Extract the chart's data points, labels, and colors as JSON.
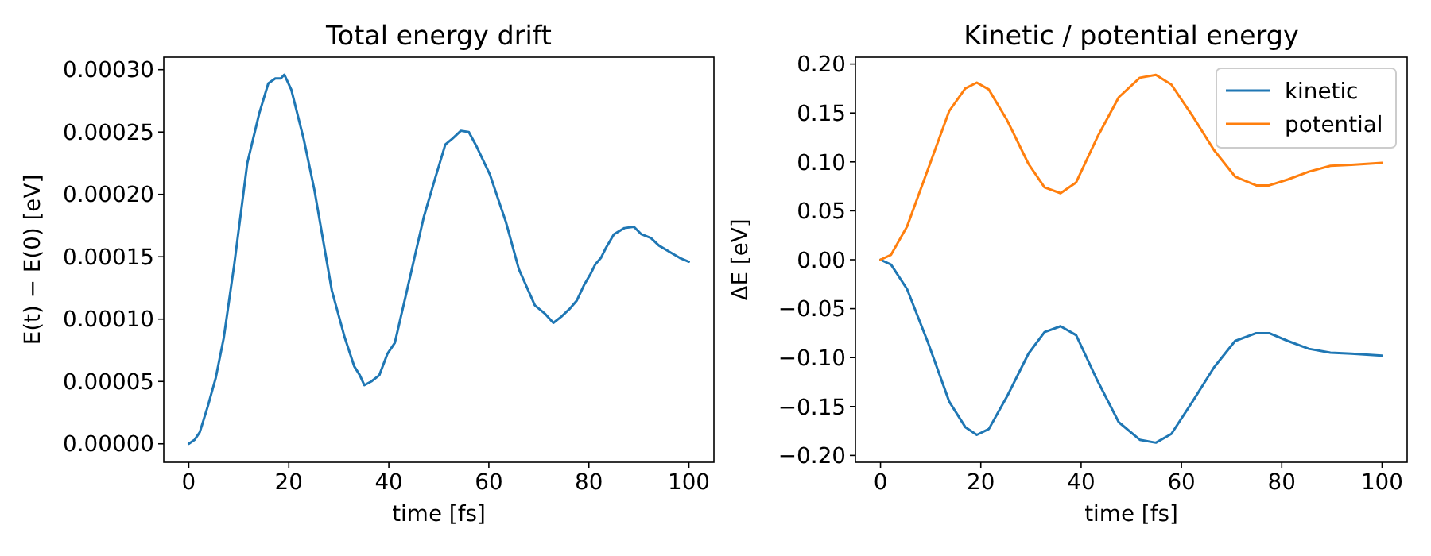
{
  "chart_data": [
    {
      "type": "line",
      "title": "Total energy drift",
      "xlabel": "time [fs]",
      "ylabel": "E(t) − E(0) [eV]",
      "xlim": [
        -5,
        105
      ],
      "xticks": [
        0,
        20,
        40,
        60,
        80,
        100
      ],
      "ylim": [
        -1.48e-05,
        0.00031
      ],
      "yticks": [
        {
          "value": 0,
          "label": "0.00000"
        },
        {
          "value": 5e-05,
          "label": "0.00005"
        },
        {
          "value": 0.0001,
          "label": "0.00010"
        },
        {
          "value": 0.00015,
          "label": "0.00015"
        },
        {
          "value": 0.0002,
          "label": "0.00020"
        },
        {
          "value": 0.00025,
          "label": "0.00025"
        },
        {
          "value": 0.0003,
          "label": "0.00030"
        }
      ],
      "line_style": "solid",
      "marker": "none",
      "series": [
        {
          "color": "#1f77b4",
          "x": [
            0,
            1.2,
            2.2,
            3.8,
            5.4,
            7,
            9.1,
            11.7,
            14.1,
            15.9,
            17.3,
            18.4,
            19.1,
            20.5,
            23,
            25.1,
            28.6,
            31.2,
            33.1,
            34.2,
            35.1,
            36.5,
            38.1,
            39.7,
            41.2,
            43.4,
            47,
            49.2,
            51.3,
            52.8,
            54.4,
            56,
            57.6,
            60.2,
            62.3,
            63.4,
            66,
            69.2,
            71.3,
            72.9,
            74.5,
            76.1,
            77.6,
            79,
            80.3,
            81.3,
            82.4,
            83.4,
            85,
            87.1,
            89,
            90.5,
            92.4,
            94,
            96.1,
            98.2,
            100
          ],
          "values": [
            0,
            3.4e-06,
            9.3e-06,
            3e-05,
            5.3e-05,
            8.5e-05,
            0.000144,
            0.000225,
            0.000265,
            0.000289,
            0.000293,
            0.000293,
            0.000296,
            0.000284,
            0.000244,
            0.000204,
            0.000123,
            8.5e-05,
            6.2e-05,
            5.5e-05,
            4.7e-05,
            5e-05,
            5.5e-05,
            7.2e-05,
            8.1e-05,
            0.000119,
            0.000182,
            0.000212,
            0.00024,
            0.000245,
            0.000251,
            0.00025,
            0.000238,
            0.000216,
            0.000191,
            0.000178,
            0.00014,
            0.000111,
            0.000104,
            9.7e-05,
            0.000102,
            0.000108,
            0.000115,
            0.000127,
            0.000136,
            0.000144,
            0.000149,
            0.000157,
            0.000168,
            0.000173,
            0.000174,
            0.000168,
            0.000165,
            0.000159,
            0.000154,
            0.000149,
            0.000146
          ]
        }
      ]
    },
    {
      "type": "line",
      "title": "Kinetic / potential energy",
      "xlabel": "time [fs]",
      "ylabel": "ΔE [eV]",
      "xlim": [
        -5,
        105
      ],
      "xticks": [
        0,
        20,
        40,
        60,
        80,
        100
      ],
      "ylim": [
        -0.207,
        0.207
      ],
      "yticks": [
        {
          "value": -0.2,
          "label": "−0.20"
        },
        {
          "value": -0.15,
          "label": "−0.15"
        },
        {
          "value": -0.1,
          "label": "−0.10"
        },
        {
          "value": -0.05,
          "label": "−0.05"
        },
        {
          "value": 0,
          "label": "0.00"
        },
        {
          "value": 0.05,
          "label": "0.05"
        },
        {
          "value": 0.1,
          "label": "0.10"
        },
        {
          "value": 0.15,
          "label": "0.15"
        },
        {
          "value": 0.2,
          "label": "0.20"
        }
      ],
      "legend": "top right",
      "line_style": "solid",
      "marker": "none",
      "x": [
        0,
        2.1,
        5.3,
        9.5,
        13.7,
        16.9,
        19.2,
        21.6,
        25.3,
        29.5,
        32.7,
        35.9,
        39,
        43.2,
        47.5,
        51.7,
        54.9,
        58,
        62.2,
        66.5,
        70.7,
        74.9,
        77.5,
        81.2,
        85.4,
        89.7,
        93.9,
        100
      ],
      "series": [
        {
          "name": "kinetic",
          "color": "#1f77b4",
          "values": [
            0,
            -0.005,
            -0.03,
            -0.085,
            -0.145,
            -0.171,
            -0.179,
            -0.173,
            -0.139,
            -0.096,
            -0.074,
            -0.068,
            -0.077,
            -0.123,
            -0.166,
            -0.184,
            -0.187,
            -0.178,
            -0.145,
            -0.11,
            -0.083,
            -0.075,
            -0.075,
            -0.083,
            -0.091,
            -0.095,
            -0.096,
            -0.098
          ]
        },
        {
          "name": "potential",
          "color": "#ff7f0e",
          "values": [
            0,
            0.005,
            0.034,
            0.093,
            0.152,
            0.175,
            0.181,
            0.174,
            0.142,
            0.098,
            0.074,
            0.068,
            0.079,
            0.125,
            0.166,
            0.186,
            0.189,
            0.179,
            0.147,
            0.112,
            0.085,
            0.076,
            0.076,
            0.082,
            0.09,
            0.096,
            0.097,
            0.099
          ]
        }
      ]
    }
  ]
}
